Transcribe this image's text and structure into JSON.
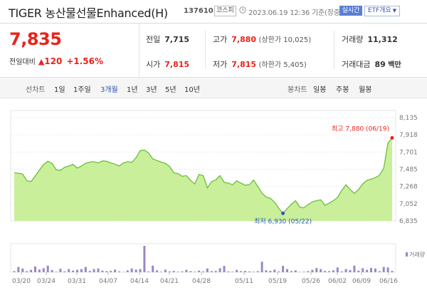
{
  "header": {
    "name": "TIGER 농산물선물Enhanced(H)",
    "code": "137610",
    "market": "코스피",
    "time": "2023.06.19 12:36 기준(장중)",
    "realtime": "실시간",
    "etf": "ETF개요"
  },
  "price": {
    "current": "7,835",
    "change_label": "전일대비",
    "change_icon": "up-triangle-icon",
    "change_symbol": "▲",
    "change": "120",
    "change_pct": "+1.56%",
    "up_color": "#e8241c"
  },
  "stats": {
    "prev_label": "전일",
    "prev": "7,715",
    "open_label": "시가",
    "open": "7,815",
    "high_label": "고가",
    "high": "7,880",
    "upper_limit_label": "(상한가",
    "upper_limit": "10,025)",
    "low_label": "저가",
    "low": "7,815",
    "lower_limit_label": "(하한가",
    "lower_limit": "5,405)",
    "volume_label": "거래량",
    "volume": "11,312",
    "amount_label": "거래대금",
    "amount": "89",
    "amount_unit": "백만"
  },
  "tabs": {
    "line_label": "선차트",
    "periods": [
      "1일",
      "1주일",
      "3개월",
      "1년",
      "3년",
      "5년",
      "10년"
    ],
    "selected_period": "3개월",
    "candle_label": "봉차트",
    "candles": [
      "일봉",
      "주봉",
      "월봉"
    ]
  },
  "chart_data": {
    "type": "area",
    "fill_color": "#c9ef9a",
    "line_color": "#6bbf3a",
    "volume_color": "#9a86c6",
    "y_ticks": [
      "8,135",
      "7,918",
      "7,701",
      "7,485",
      "7,268",
      "7,052",
      "6,835"
    ],
    "ylim": [
      6835,
      8135
    ],
    "x_labels": [
      "03/20",
      "03/24",
      "03/31",
      "04/07",
      "04/14",
      "04/21",
      "04/28",
      "05/11",
      "05/19",
      "05/26",
      "06/02",
      "06/09",
      "06/16"
    ],
    "high_label": "최고 7,880 (06/19)",
    "low_label": "최저 6,930 (05/22)",
    "volume_label": "거래량",
    "prices": [
      7440,
      7435,
      7425,
      7340,
      7330,
      7400,
      7475,
      7545,
      7585,
      7560,
      7480,
      7470,
      7510,
      7525,
      7545,
      7500,
      7525,
      7560,
      7575,
      7580,
      7565,
      7590,
      7585,
      7565,
      7550,
      7525,
      7565,
      7580,
      7570,
      7630,
      7720,
      7725,
      7690,
      7615,
      7595,
      7575,
      7560,
      7520,
      7440,
      7430,
      7395,
      7405,
      7345,
      7300,
      7420,
      7405,
      7250,
      7330,
      7350,
      7405,
      7320,
      7310,
      7290,
      7340,
      7310,
      7285,
      7290,
      7350,
      7270,
      7185,
      7135,
      7120,
      7070,
      6995,
      6930,
      6990,
      7045,
      7090,
      7010,
      7000,
      7040,
      7075,
      7090,
      7100,
      7030,
      7060,
      7090,
      7130,
      7220,
      7290,
      7230,
      7180,
      7230,
      7300,
      7345,
      7360,
      7380,
      7410,
      7500,
      7815,
      7880
    ],
    "volumes": [
      4,
      20,
      14,
      4,
      9,
      22,
      10,
      15,
      25,
      8,
      2,
      13,
      3,
      12,
      6,
      9,
      12,
      20,
      5,
      12,
      14,
      6,
      4,
      5,
      10,
      3,
      1,
      7,
      14,
      10,
      12,
      100,
      3,
      25,
      7,
      2,
      10,
      3,
      5,
      2,
      3,
      9,
      4,
      2,
      6,
      3,
      14,
      4,
      5,
      15,
      24,
      3,
      2,
      9,
      4,
      5,
      3,
      2,
      4,
      40,
      7,
      5,
      10,
      3,
      24,
      12,
      4,
      7,
      1,
      2,
      4,
      9,
      16,
      12,
      5,
      4,
      7,
      18,
      3,
      12,
      8,
      25,
      6,
      15,
      9,
      16,
      14,
      4,
      20,
      18,
      5
    ]
  }
}
